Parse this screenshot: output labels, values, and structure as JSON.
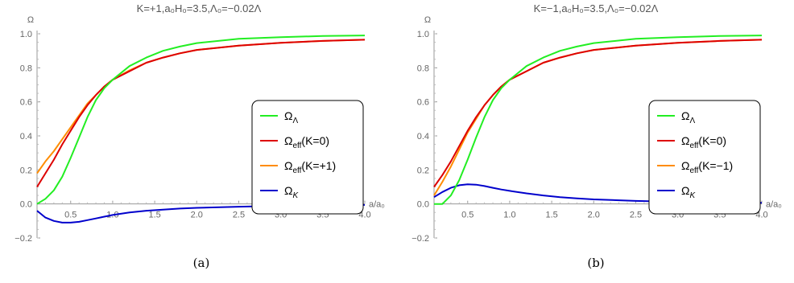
{
  "chart_data": [
    {
      "type": "line",
      "label": "(a)",
      "title": "K=+1,a₀H₀=3.5,Λ₀=−0.02Λ",
      "xlabel": "a/a₀",
      "ylabel": "Ω",
      "xlim": [
        0.1,
        4.0
      ],
      "ylim": [
        -0.2,
        1.0
      ],
      "xticks": [
        "0.5",
        "1.0",
        "1.5",
        "2.0",
        "2.5",
        "3.0",
        "3.5",
        "4.0"
      ],
      "yticks": [
        "−0.2",
        "0.0",
        "0.2",
        "0.4",
        "0.6",
        "0.8",
        "1.0"
      ],
      "grid": false,
      "legend_position": "center-right",
      "x": [
        0.1,
        0.2,
        0.3,
        0.4,
        0.5,
        0.6,
        0.7,
        0.8,
        0.9,
        1.0,
        1.2,
        1.4,
        1.6,
        1.8,
        2.0,
        2.5,
        3.0,
        3.5,
        4.0
      ],
      "series": [
        {
          "name": "ΩΛ",
          "color": "#22ee22",
          "values": [
            0.0,
            0.03,
            0.08,
            0.16,
            0.27,
            0.39,
            0.51,
            0.61,
            0.68,
            0.73,
            0.81,
            0.86,
            0.9,
            0.925,
            0.945,
            0.97,
            0.98,
            0.987,
            0.99
          ]
        },
        {
          "name": "Ωeff(K=0)",
          "color": "#dd0000",
          "values": [
            0.1,
            0.18,
            0.26,
            0.35,
            0.43,
            0.51,
            0.58,
            0.64,
            0.69,
            0.73,
            0.78,
            0.83,
            0.86,
            0.885,
            0.905,
            0.93,
            0.947,
            0.958,
            0.965
          ]
        },
        {
          "name": "Ωeff(K=+1)",
          "color": "#ff8c00",
          "values": [
            0.18,
            0.25,
            0.31,
            0.38,
            0.45,
            0.52,
            0.59,
            0.64,
            0.69,
            0.73,
            0.785,
            0.83,
            0.86,
            0.885,
            0.905,
            0.93,
            0.947,
            0.958,
            0.965
          ]
        },
        {
          "name": "ΩK",
          "color": "#0000cc",
          "values": [
            -0.04,
            -0.08,
            -0.1,
            -0.11,
            -0.11,
            -0.105,
            -0.095,
            -0.085,
            -0.075,
            -0.065,
            -0.05,
            -0.04,
            -0.033,
            -0.027,
            -0.023,
            -0.016,
            -0.011,
            -0.008,
            -0.006
          ]
        }
      ]
    },
    {
      "type": "line",
      "label": "(b)",
      "title": "K=−1,a₀H₀=3.5,Λ₀=−0.02Λ",
      "xlabel": "a/a₀",
      "ylabel": "Ω",
      "xlim": [
        0.1,
        4.0
      ],
      "ylim": [
        -0.2,
        1.0
      ],
      "xticks": [
        "0.5",
        "1.0",
        "1.5",
        "2.0",
        "2.5",
        "3.0",
        "3.5",
        "4.0"
      ],
      "yticks": [
        "−0.2",
        "0.0",
        "0.2",
        "0.4",
        "0.6",
        "0.8",
        "1.0"
      ],
      "grid": false,
      "legend_position": "center-right",
      "x": [
        0.1,
        0.2,
        0.3,
        0.4,
        0.5,
        0.6,
        0.7,
        0.8,
        0.9,
        1.0,
        1.2,
        1.4,
        1.6,
        1.8,
        2.0,
        2.5,
        3.0,
        3.5,
        4.0
      ],
      "series": [
        {
          "name": "ΩΛ",
          "color": "#22ee22",
          "values": [
            0.0,
            0.0,
            0.05,
            0.14,
            0.26,
            0.39,
            0.51,
            0.61,
            0.68,
            0.73,
            0.81,
            0.86,
            0.9,
            0.925,
            0.945,
            0.97,
            0.98,
            0.987,
            0.99
          ]
        },
        {
          "name": "Ωeff(K=0)",
          "color": "#dd0000",
          "values": [
            0.1,
            0.17,
            0.25,
            0.34,
            0.43,
            0.51,
            0.58,
            0.64,
            0.69,
            0.73,
            0.78,
            0.83,
            0.86,
            0.885,
            0.905,
            0.93,
            0.947,
            0.958,
            0.965
          ]
        },
        {
          "name": "Ωeff(K=−1)",
          "color": "#ff8c00",
          "values": [
            0.05,
            0.13,
            0.22,
            0.32,
            0.42,
            0.5,
            0.58,
            0.64,
            0.69,
            0.73,
            0.78,
            0.83,
            0.86,
            0.885,
            0.905,
            0.93,
            0.947,
            0.958,
            0.965
          ]
        },
        {
          "name": "ΩK",
          "color": "#0000cc",
          "values": [
            0.04,
            0.07,
            0.095,
            0.11,
            0.115,
            0.113,
            0.105,
            0.095,
            0.085,
            0.077,
            0.062,
            0.05,
            0.04,
            0.033,
            0.027,
            0.018,
            0.012,
            0.009,
            0.007
          ]
        }
      ]
    }
  ]
}
